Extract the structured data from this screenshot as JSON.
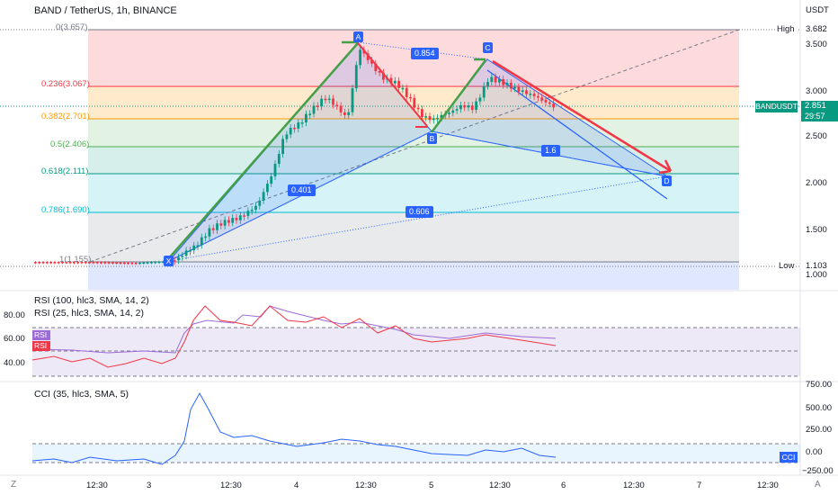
{
  "header": {
    "symbol": "BAND / TetherUS, 1h, BINANCE",
    "currency": "USDT"
  },
  "price_axis": {
    "ticks": [
      "3.500",
      "3.000",
      "2.500",
      "2.000",
      "1.500",
      "1.000"
    ],
    "high_label": "High",
    "high_value": "3.682",
    "low_label": "Low",
    "low_value": "1.103",
    "symbol_tag": "BANDUSDT",
    "last_price": "2.851",
    "countdown": "29:57"
  },
  "fib_levels": [
    {
      "label": "0(3.657)",
      "color": "#787b86"
    },
    {
      "label": "0.236(3.067)",
      "color": "#f23645"
    },
    {
      "label": "0.382(2.701)",
      "color": "#ff9800"
    },
    {
      "label": "0.5(2.406)",
      "color": "#4caf50"
    },
    {
      "label": "0.618(2.111)",
      "color": "#089981"
    },
    {
      "label": "0.786(1.690)",
      "color": "#00bcd4"
    },
    {
      "label": "1(1.155)",
      "color": "#787b86"
    }
  ],
  "pattern": {
    "points": [
      "X",
      "A",
      "B",
      "C",
      "D"
    ],
    "ratios": [
      "0.854",
      "0.401",
      "1.6",
      "0.606"
    ]
  },
  "rsi_panel": {
    "title1": "RSI (100, hlc3, SMA, 14, 2)",
    "title2": "RSI (25, hlc3, SMA, 14, 2)",
    "ticks": [
      "80.00",
      "60.00",
      "40.00"
    ],
    "tag1": "RSI",
    "tag2": "RSI"
  },
  "cci_panel": {
    "title": "CCI (35, hlc3, SMA, 5)",
    "ticks": [
      "750.00",
      "500.00",
      "250.00",
      "0.00",
      "−250.00"
    ],
    "tag": "CCI"
  },
  "time_axis": {
    "labels": [
      "12:30",
      "3",
      "12:30",
      "4",
      "12:30",
      "5",
      "12:30",
      "6",
      "12:30",
      "7",
      "12:30"
    ],
    "left_icon": "Z",
    "right_icon": "A"
  },
  "colors": {
    "up": "#089981",
    "down": "#f23645",
    "pattern_line": "#2962ff",
    "arrow_green": "#43a047",
    "arrow_red": "#f23645"
  }
}
